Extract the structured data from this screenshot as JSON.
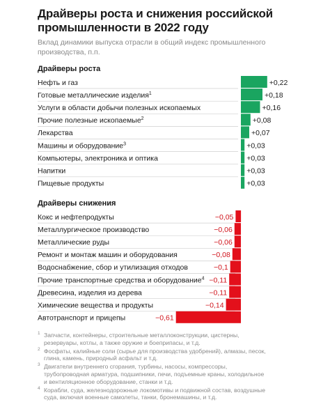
{
  "chart_data": {
    "type": "bar",
    "title": "Драйверы роста и снижения российской промышленности в 2022 году",
    "subtitle": "Вклад динамики выпуска отрасли в общий индекс промышленного производства, п.п.",
    "colors": {
      "growth": "#1aa560",
      "decline": "#e3101b",
      "decline_text": "#d0121a"
    },
    "grid": false,
    "legend": "none",
    "xlim": [
      -0.61,
      0.22
    ],
    "sections": [
      {
        "name": "Драйверы роста",
        "items": [
          {
            "label": "Нефть и газ",
            "note": "",
            "value": 0.22,
            "label_text": "+0,22"
          },
          {
            "label": "Готовые металлические изделия",
            "note": "1",
            "value": 0.18,
            "label_text": "+0,18"
          },
          {
            "label": "Услуги в области добычи полезных ископаемых",
            "note": "",
            "value": 0.16,
            "label_text": "+0,16"
          },
          {
            "label": "Прочие полезные ископаемые",
            "note": "2",
            "value": 0.08,
            "label_text": "+0,08"
          },
          {
            "label": "Лекарства",
            "note": "",
            "value": 0.07,
            "label_text": "+0,07"
          },
          {
            "label": "Машины и оборудование",
            "note": "3",
            "value": 0.03,
            "label_text": "+0,03"
          },
          {
            "label": "Компьютеры, электроника и оптика",
            "note": "",
            "value": 0.03,
            "label_text": "+0,03"
          },
          {
            "label": "Напитки",
            "note": "",
            "value": 0.03,
            "label_text": "+0,03"
          },
          {
            "label": "Пищевые продукты",
            "note": "",
            "value": 0.03,
            "label_text": "+0,03"
          }
        ]
      },
      {
        "name": "Драйверы снижения",
        "items": [
          {
            "label": "Кокс и нефтепродукты",
            "note": "",
            "value": -0.05,
            "label_text": "−0,05"
          },
          {
            "label": "Металлургическое производство",
            "note": "",
            "value": -0.06,
            "label_text": "−0,06"
          },
          {
            "label": "Металлические руды",
            "note": "",
            "value": -0.06,
            "label_text": "−0,06"
          },
          {
            "label": "Ремонт и монтаж машин и оборудования",
            "note": "",
            "value": -0.08,
            "label_text": "−0,08"
          },
          {
            "label": "Водоснабжение, сбор и утилизация отходов",
            "note": "",
            "value": -0.1,
            "label_text": "−0,1"
          },
          {
            "label": "Прочие транспортные средства и оборудование",
            "note": "4",
            "value": -0.11,
            "label_text": "−0,11"
          },
          {
            "label": "Древесина, изделия из дерева",
            "note": "",
            "value": -0.11,
            "label_text": "−0,11"
          },
          {
            "label": "Химические вещества и продукты",
            "note": "",
            "value": -0.14,
            "label_text": "−0,14"
          },
          {
            "label": "Автотранспорт и прицепы",
            "note": "",
            "value": -0.61,
            "label_text": "−0,61"
          }
        ]
      }
    ]
  },
  "footnotes": [
    {
      "mark": "1",
      "text": "Запчасти, контейнеры, строительные металлоконструкции, цистерны, резервуары, котлы, а также оружие и боеприпасы, и т.д."
    },
    {
      "mark": "2",
      "text": "Фосфаты, калийные соли (сырье для производства удобрений), алмазы, песок, глина, камень, природный асфальт и т.д."
    },
    {
      "mark": "3",
      "text": "Двигатели внутреннего сгорания, турбины, насосы, компрессоры, трубопроводная арматура, подшипники, печи, подъемные краны, холодильное и вентиляционное оборудование, станки и т.д."
    },
    {
      "mark": "4",
      "text": "Корабли, суда, железнодорожные локомотивы и подвижной состав, воздушные суда, включая военные самолеты, танки, бронемашины, и т.д."
    }
  ]
}
